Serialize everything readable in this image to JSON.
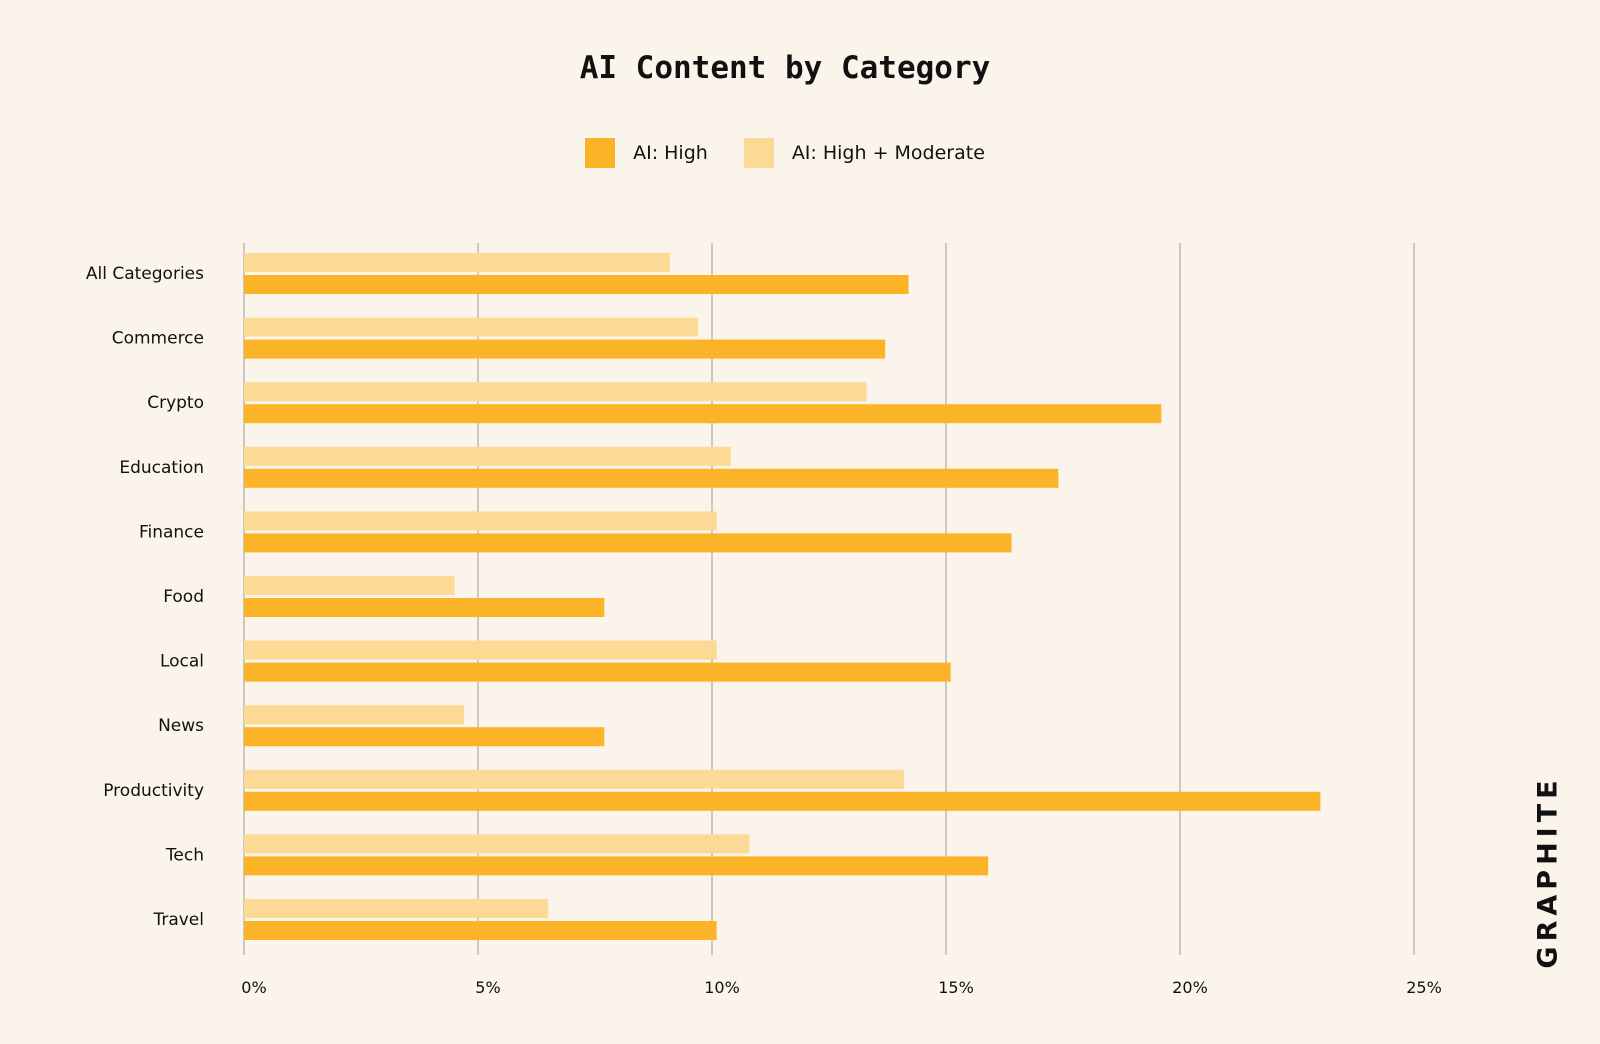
{
  "chart_data": {
    "type": "bar",
    "orientation": "horizontal",
    "title": "AI Content by Category",
    "categories": [
      "All Categories",
      "Commerce",
      "Crypto",
      "Education",
      "Finance",
      "Food",
      "Local",
      "News",
      "Productivity",
      "Tech",
      "Travel"
    ],
    "series": [
      {
        "name": "AI: High + Moderate",
        "color": "#FCD995",
        "values": [
          9.1,
          9.7,
          13.3,
          10.4,
          10.1,
          4.5,
          10.1,
          4.7,
          14.1,
          10.8,
          6.5
        ]
      },
      {
        "name": "AI: High",
        "color": "#FBB328",
        "values": [
          14.2,
          13.7,
          19.6,
          17.4,
          16.4,
          7.7,
          15.1,
          7.7,
          23.0,
          15.9,
          10.1
        ]
      }
    ],
    "xlim": [
      0,
      25
    ],
    "xticks": [
      "0%",
      "5%",
      "10%",
      "15%",
      "20%",
      "25%"
    ],
    "xtick_values": [
      0,
      5,
      10,
      15,
      20,
      25
    ],
    "grid": true,
    "legend_position": "top-center"
  },
  "brand": {
    "text": "GRAPHITE"
  },
  "colors": {
    "background": "#FBF4EA",
    "gridline": "#BFBAB2",
    "text": "#111111"
  }
}
